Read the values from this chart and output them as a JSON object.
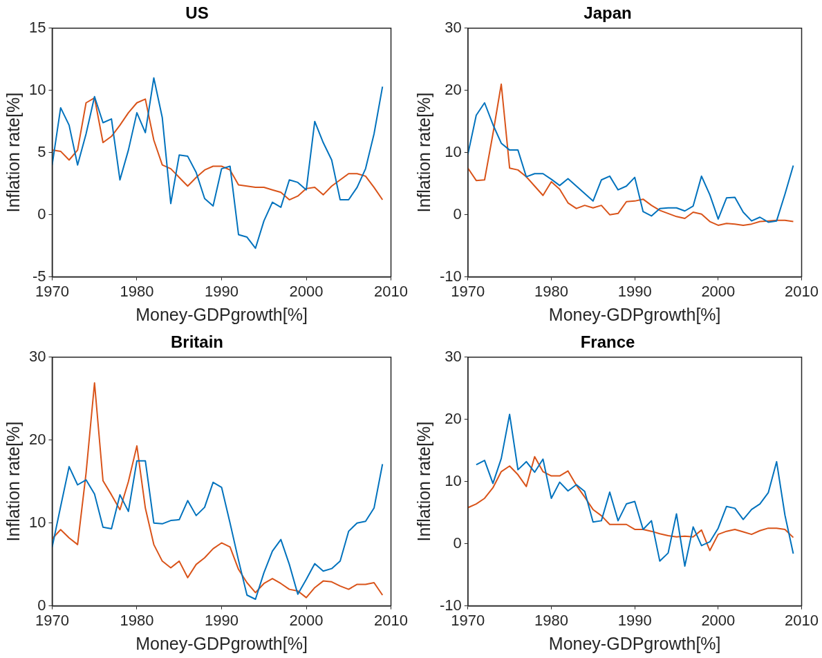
{
  "chart_data": [
    {
      "type": "line",
      "title": "US",
      "xlabel": "Money-GDPgrowth[%]",
      "ylabel": "Inflation rate[%]",
      "x": [
        1970,
        1971,
        1972,
        1973,
        1974,
        1975,
        1976,
        1977,
        1978,
        1979,
        1980,
        1981,
        1982,
        1983,
        1984,
        1985,
        1986,
        1987,
        1988,
        1989,
        1990,
        1991,
        1992,
        1993,
        1994,
        1995,
        1996,
        1997,
        1998,
        1999,
        2000,
        2001,
        2002,
        2003,
        2004,
        2005,
        2006,
        2007,
        2008,
        2009
      ],
      "series": [
        {
          "color": "#0072bd",
          "values": [
            4.0,
            8.6,
            7.2,
            4.0,
            6.5,
            9.5,
            7.4,
            7.7,
            2.8,
            5.2,
            8.2,
            6.6,
            11.0,
            7.8,
            0.9,
            4.8,
            4.7,
            3.4,
            1.3,
            0.7,
            3.7,
            3.9,
            -1.6,
            -1.8,
            -2.7,
            -0.5,
            1.0,
            0.6,
            2.8,
            2.6,
            2.0,
            7.5,
            5.8,
            4.4,
            1.2,
            1.2,
            2.2,
            3.7,
            6.5,
            10.3
          ]
        },
        {
          "color": "#d95319",
          "values": [
            5.2,
            5.1,
            4.4,
            5.2,
            9.0,
            9.4,
            5.8,
            6.3,
            7.2,
            8.2,
            9.0,
            9.3,
            6.0,
            4.0,
            3.7,
            3.0,
            2.3,
            3.0,
            3.6,
            3.9,
            3.9,
            3.6,
            2.4,
            2.3,
            2.2,
            2.2,
            2.0,
            1.8,
            1.2,
            1.5,
            2.1,
            2.2,
            1.6,
            2.3,
            2.8,
            3.3,
            3.3,
            3.1,
            2.2,
            1.2
          ]
        }
      ],
      "xlim": [
        1970,
        2010
      ],
      "xticks": [
        1970,
        1980,
        1990,
        2000,
        2010
      ],
      "ylim": [
        -5,
        15
      ],
      "yticks": [
        -5,
        0,
        5,
        10,
        15
      ],
      "marker": "none",
      "line_style": "solid"
    },
    {
      "type": "line",
      "title": "Japan",
      "xlabel": "Money-GDPgrowth[%]",
      "ylabel": "Inflation rate[%]",
      "x": [
        1970,
        1971,
        1972,
        1973,
        1974,
        1975,
        1976,
        1977,
        1978,
        1979,
        1980,
        1981,
        1982,
        1983,
        1984,
        1985,
        1986,
        1987,
        1988,
        1989,
        1990,
        1991,
        1992,
        1993,
        1994,
        1995,
        1996,
        1997,
        1998,
        1999,
        2000,
        2001,
        2002,
        2003,
        2004,
        2005,
        2006,
        2007,
        2008,
        2009
      ],
      "series": [
        {
          "color": "#0072bd",
          "values": [
            9.7,
            16,
            18,
            14.5,
            11.5,
            10.4,
            10.4,
            6.1,
            6.6,
            6.6,
            5.7,
            4.7,
            5.8,
            4.6,
            3.4,
            2.2,
            5.6,
            6.2,
            4.0,
            4.6,
            6.0,
            0.5,
            -0.2,
            1.0,
            1.1,
            1.1,
            0.6,
            1.4,
            6.2,
            3.2,
            -0.7,
            2.7,
            2.8,
            0.4,
            -1.0,
            -0.4,
            -1.2,
            -1.0,
            3.3,
            7.9
          ]
        },
        {
          "color": "#d95319",
          "values": [
            7.5,
            5.5,
            5.6,
            13,
            21,
            7.5,
            7.2,
            6.1,
            4.6,
            3.1,
            5.3,
            4.1,
            1.9,
            1.0,
            1.5,
            1.1,
            1.5,
            0.0,
            0.2,
            2.1,
            2.2,
            2.5,
            1.5,
            0.7,
            0.2,
            -0.3,
            -0.6,
            0.4,
            0.1,
            -1.1,
            -1.7,
            -1.4,
            -1.5,
            -1.7,
            -1.5,
            -1.1,
            -1.0,
            -0.9,
            -0.9,
            -1.1
          ]
        }
      ],
      "xlim": [
        1970,
        2010
      ],
      "xticks": [
        1970,
        1980,
        1990,
        2000,
        2010
      ],
      "ylim": [
        -10,
        30
      ],
      "yticks": [
        -10,
        0,
        10,
        20,
        30
      ],
      "marker": "none",
      "line_style": "solid"
    },
    {
      "type": "line",
      "title": "Britain",
      "xlabel": "Money-GDPgrowth[%]",
      "ylabel": "Inflation rate[%]",
      "x": [
        1970,
        1971,
        1972,
        1973,
        1974,
        1975,
        1976,
        1977,
        1978,
        1979,
        1980,
        1981,
        1982,
        1983,
        1984,
        1985,
        1986,
        1987,
        1988,
        1989,
        1990,
        1991,
        1992,
        1993,
        1994,
        1995,
        1996,
        1997,
        1998,
        1999,
        2000,
        2001,
        2002,
        2003,
        2004,
        2005,
        2006,
        2007,
        2008,
        2009
      ],
      "series": [
        {
          "color": "#0072bd",
          "values": [
            7.1,
            12,
            16.8,
            14.6,
            15.2,
            13.5,
            9.5,
            9.3,
            13.4,
            11.4,
            17.5,
            17.5,
            10.0,
            9.9,
            10.3,
            10.4,
            12.7,
            10.9,
            11.9,
            14.9,
            14.3,
            10.0,
            5.5,
            1.3,
            0.8,
            4.0,
            6.6,
            8.0,
            5.0,
            1.4,
            3.2,
            5.1,
            4.2,
            4.5,
            5.4,
            9.0,
            10.0,
            10.2,
            11.8,
            17.1
          ]
        },
        {
          "color": "#d95319",
          "values": [
            8.1,
            9.2,
            8.2,
            7.4,
            16,
            26.9,
            15.1,
            13.4,
            11.6,
            15,
            19.3,
            11.8,
            7.4,
            5.4,
            4.6,
            5.4,
            3.4,
            5.0,
            5.8,
            6.9,
            7.6,
            7.1,
            4.4,
            2.8,
            1.6,
            2.7,
            3.3,
            2.7,
            2.0,
            1.8,
            1.0,
            2.2,
            3.0,
            2.9,
            2.4,
            2.0,
            2.6,
            2.6,
            2.8,
            1.3
          ]
        }
      ],
      "xlim": [
        1970,
        2010
      ],
      "xticks": [
        1970,
        1980,
        1990,
        2000,
        2010
      ],
      "ylim": [
        0,
        30
      ],
      "yticks": [
        0,
        10,
        20,
        30
      ],
      "marker": "none",
      "line_style": "solid"
    },
    {
      "type": "line",
      "title": "France",
      "xlabel": "Money-GDPgrowth[%]",
      "ylabel": "Inflation rate[%]",
      "x": [
        1970,
        1971,
        1972,
        1973,
        1974,
        1975,
        1976,
        1977,
        1978,
        1979,
        1980,
        1981,
        1982,
        1983,
        1984,
        1985,
        1986,
        1987,
        1988,
        1989,
        1990,
        1991,
        1992,
        1993,
        1994,
        1995,
        1996,
        1997,
        1998,
        1999,
        2000,
        2001,
        2002,
        2003,
        2004,
        2005,
        2006,
        2007,
        2008,
        2009
      ],
      "series": [
        {
          "color": "#0072bd",
          "values": [
            null,
            12.7,
            13.4,
            9.7,
            13.7,
            20.8,
            11.9,
            13.2,
            11.5,
            13.6,
            7.3,
            9.9,
            8.5,
            9.5,
            8.4,
            3.5,
            3.7,
            8.3,
            3.7,
            6.4,
            6.8,
            2.3,
            3.7,
            -2.8,
            -1.5,
            4.8,
            -3.6,
            2.7,
            -0.3,
            0.3,
            2.5,
            6.0,
            5.7,
            3.9,
            5.5,
            6.4,
            8.2,
            13.2,
            4.6,
            -1.6
          ]
        },
        {
          "color": "#d95319",
          "values": [
            5.8,
            6.4,
            7.3,
            9.0,
            11.6,
            12.5,
            11.1,
            9.2,
            14.0,
            11.6,
            10.9,
            10.9,
            11.7,
            9.4,
            7.5,
            5.5,
            4.5,
            3.1,
            3.1,
            3.1,
            2.3,
            2.3,
            2.0,
            1.6,
            1.3,
            1.1,
            1.2,
            1.1,
            2.2,
            -1.1,
            1.5,
            2.0,
            2.3,
            1.9,
            1.5,
            2.1,
            2.5,
            2.5,
            2.3,
            1.0
          ]
        }
      ],
      "xlim": [
        1970,
        2010
      ],
      "xticks": [
        1970,
        1980,
        1990,
        2000,
        2010
      ],
      "ylim": [
        -10,
        30
      ],
      "yticks": [
        -10,
        0,
        10,
        20,
        30
      ],
      "marker": "none",
      "line_style": "solid"
    }
  ]
}
